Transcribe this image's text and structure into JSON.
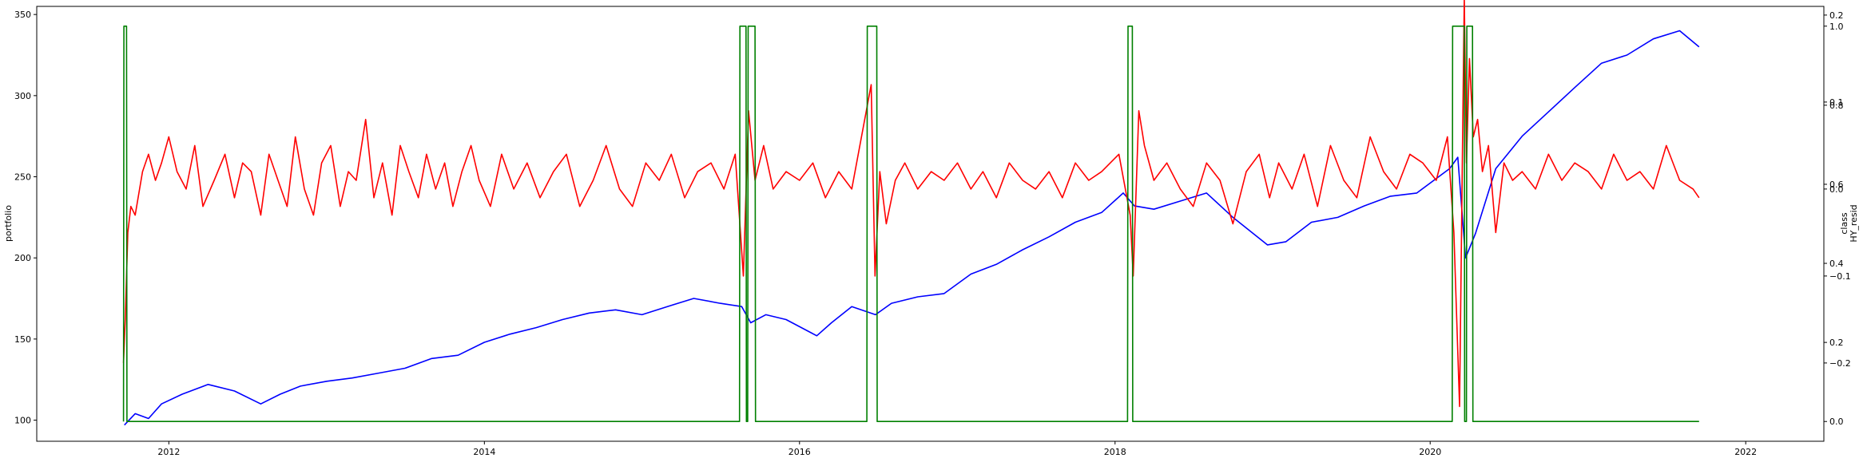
{
  "chart_data": {
    "type": "line",
    "x_ticks": [
      "2012",
      "2014",
      "2016",
      "2018",
      "2020",
      "2022"
    ],
    "xlim": [
      "2011-03-01",
      "2022-07-01"
    ],
    "left_axis": {
      "label": "portfolio",
      "ylim": [
        87,
        355
      ],
      "ticks": [
        "100",
        "150",
        "200",
        "250",
        "300",
        "350"
      ]
    },
    "right_axes": [
      {
        "name": "class",
        "ylim": [
          -0.05,
          1.05
        ],
        "ticks": [
          "0.0",
          "0.2",
          "0.4",
          "0.6",
          "0.8",
          "1.0"
        ]
      },
      {
        "name": "HY_resid",
        "ylim": [
          -0.29,
          0.21
        ],
        "ticks": [
          "−0.2",
          "−0.1",
          "0.0",
          "0.1",
          "0.2"
        ]
      }
    ],
    "right_label_top": "class",
    "right_label_bottom": "HY_resid",
    "series": [
      {
        "color": "#0000ff",
        "axis": "left",
        "x": [
          "2011-09-20",
          "2011-10-15",
          "2011-11-15",
          "2011-12-15",
          "2012-02-01",
          "2012-04-01",
          "2012-06-01",
          "2012-08-01",
          "2012-09-15",
          "2012-11-01",
          "2013-01-01",
          "2013-03-01",
          "2013-05-01",
          "2013-07-01",
          "2013-09-01",
          "2013-11-01",
          "2014-01-01",
          "2014-03-01",
          "2014-05-01",
          "2014-07-01",
          "2014-09-01",
          "2014-11-01",
          "2015-01-01",
          "2015-03-01",
          "2015-05-01",
          "2015-07-01",
          "2015-08-20",
          "2015-09-10",
          "2015-10-15",
          "2015-12-01",
          "2016-02-10",
          "2016-03-15",
          "2016-05-01",
          "2016-06-25",
          "2016-08-01",
          "2016-10-01",
          "2016-12-01",
          "2017-02-01",
          "2017-04-01",
          "2017-06-01",
          "2017-08-01",
          "2017-10-01",
          "2017-12-01",
          "2018-01-20",
          "2018-02-15",
          "2018-04-01",
          "2018-06-01",
          "2018-08-01",
          "2018-10-01",
          "2018-12-20",
          "2019-02-01",
          "2019-04-01",
          "2019-06-01",
          "2019-08-01",
          "2019-10-01",
          "2019-12-01",
          "2020-02-15",
          "2020-03-05",
          "2020-03-23",
          "2020-04-15",
          "2020-06-01",
          "2020-08-01",
          "2020-10-01",
          "2020-12-01",
          "2021-02-01",
          "2021-04-01",
          "2021-06-01",
          "2021-08-01",
          "2021-09-15"
        ],
        "y": [
          97,
          104,
          101,
          110,
          116,
          122,
          118,
          110,
          116,
          121,
          124,
          126,
          129,
          132,
          138,
          140,
          148,
          153,
          157,
          162,
          166,
          168,
          165,
          170,
          175,
          172,
          170,
          160,
          165,
          162,
          152,
          160,
          170,
          165,
          172,
          176,
          178,
          190,
          196,
          205,
          213,
          222,
          228,
          240,
          232,
          230,
          235,
          240,
          225,
          208,
          210,
          222,
          225,
          232,
          238,
          240,
          255,
          262,
          200,
          215,
          255,
          275,
          290,
          305,
          320,
          325,
          335,
          340,
          330
        ]
      },
      {
        "color": "#ff0000",
        "axis": "right_hy",
        "x": [
          "2011-09-18",
          "2011-09-22",
          "2011-09-28",
          "2011-10-05",
          "2011-10-15",
          "2011-11-01",
          "2011-11-15",
          "2011-12-01",
          "2011-12-15",
          "2012-01-01",
          "2012-01-20",
          "2012-02-10",
          "2012-03-01",
          "2012-03-20",
          "2012-04-15",
          "2012-05-10",
          "2012-06-01",
          "2012-06-20",
          "2012-07-10",
          "2012-08-01",
          "2012-08-20",
          "2012-09-10",
          "2012-10-01",
          "2012-10-20",
          "2012-11-10",
          "2012-12-01",
          "2012-12-20",
          "2013-01-10",
          "2013-02-01",
          "2013-02-20",
          "2013-03-10",
          "2013-04-01",
          "2013-04-20",
          "2013-05-10",
          "2013-06-01",
          "2013-06-20",
          "2013-07-10",
          "2013-08-01",
          "2013-08-20",
          "2013-09-10",
          "2013-10-01",
          "2013-10-20",
          "2013-11-10",
          "2013-12-01",
          "2013-12-20",
          "2014-01-15",
          "2014-02-10",
          "2014-03-10",
          "2014-04-10",
          "2014-05-10",
          "2014-06-10",
          "2014-07-10",
          "2014-08-10",
          "2014-09-10",
          "2014-10-10",
          "2014-11-10",
          "2014-12-10",
          "2015-01-10",
          "2015-02-10",
          "2015-03-10",
          "2015-04-10",
          "2015-05-10",
          "2015-06-10",
          "2015-07-10",
          "2015-08-05",
          "2015-08-24",
          "2015-09-05",
          "2015-09-20",
          "2015-10-10",
          "2015-11-01",
          "2015-12-01",
          "2016-01-01",
          "2016-02-01",
          "2016-03-01",
          "2016-04-01",
          "2016-05-01",
          "2016-06-15",
          "2016-06-24",
          "2016-07-05",
          "2016-07-20",
          "2016-08-10",
          "2016-09-01",
          "2016-10-01",
          "2016-11-01",
          "2016-12-01",
          "2017-01-01",
          "2017-02-01",
          "2017-03-01",
          "2017-04-01",
          "2017-05-01",
          "2017-06-01",
          "2017-07-01",
          "2017-08-01",
          "2017-09-01",
          "2017-10-01",
          "2017-11-01",
          "2017-12-01",
          "2018-01-10",
          "2018-02-05",
          "2018-02-12",
          "2018-02-25",
          "2018-03-10",
          "2018-04-01",
          "2018-05-01",
          "2018-06-01",
          "2018-07-01",
          "2018-08-01",
          "2018-09-01",
          "2018-10-01",
          "2018-11-01",
          "2018-12-01",
          "2018-12-25",
          "2019-01-15",
          "2019-02-15",
          "2019-03-15",
          "2019-04-15",
          "2019-05-15",
          "2019-06-15",
          "2019-07-15",
          "2019-08-15",
          "2019-09-15",
          "2019-10-15",
          "2019-11-15",
          "2019-12-15",
          "2020-01-15",
          "2020-02-10",
          "2020-02-25",
          "2020-03-09",
          "2020-03-16",
          "2020-03-20",
          "2020-03-25",
          "2020-04-01",
          "2020-04-10",
          "2020-04-20",
          "2020-05-01",
          "2020-05-15",
          "2020-06-01",
          "2020-06-20",
          "2020-07-10",
          "2020-08-01",
          "2020-09-01",
          "2020-10-01",
          "2020-11-01",
          "2020-12-01",
          "2021-01-01",
          "2021-02-01",
          "2021-03-01",
          "2021-04-01",
          "2021-05-01",
          "2021-06-01",
          "2021-07-01",
          "2021-08-01",
          "2021-09-01",
          "2021-09-15"
        ],
        "y": [
          -0.2,
          -0.15,
          -0.05,
          -0.02,
          -0.03,
          0.02,
          0.04,
          0.01,
          0.03,
          0.06,
          0.02,
          0.0,
          0.05,
          -0.02,
          0.01,
          0.04,
          -0.01,
          0.03,
          0.02,
          -0.03,
          0.04,
          0.01,
          -0.02,
          0.06,
          0.0,
          -0.03,
          0.03,
          0.05,
          -0.02,
          0.02,
          0.01,
          0.08,
          -0.01,
          0.03,
          -0.03,
          0.05,
          0.02,
          -0.01,
          0.04,
          0.0,
          0.03,
          -0.02,
          0.02,
          0.05,
          0.01,
          -0.02,
          0.04,
          0.0,
          0.03,
          -0.01,
          0.02,
          0.04,
          -0.02,
          0.01,
          0.05,
          0.0,
          -0.02,
          0.03,
          0.01,
          0.04,
          -0.01,
          0.02,
          0.03,
          0.0,
          0.04,
          -0.1,
          0.09,
          0.01,
          0.05,
          0.0,
          0.02,
          0.01,
          0.03,
          -0.01,
          0.02,
          0.0,
          0.12,
          -0.1,
          0.02,
          -0.04,
          0.01,
          0.03,
          0.0,
          0.02,
          0.01,
          0.03,
          0.0,
          0.02,
          -0.01,
          0.03,
          0.01,
          0.0,
          0.02,
          -0.01,
          0.03,
          0.01,
          0.02,
          0.04,
          -0.03,
          -0.1,
          0.09,
          0.05,
          0.01,
          0.03,
          0.0,
          -0.02,
          0.03,
          0.01,
          -0.04,
          0.02,
          0.04,
          -0.01,
          0.03,
          0.0,
          0.04,
          -0.02,
          0.05,
          0.01,
          -0.01,
          0.06,
          0.02,
          0.0,
          0.04,
          0.03,
          0.01,
          0.06,
          -0.05,
          -0.25,
          0.05,
          0.22,
          0.03,
          0.15,
          0.06,
          0.08,
          0.02,
          0.05,
          -0.05,
          0.03,
          0.01,
          0.02,
          0.0,
          0.04,
          0.01,
          0.03,
          0.02,
          0.0,
          0.04,
          0.01,
          0.02,
          0.0,
          0.05,
          0.01,
          0.0,
          -0.01
        ]
      },
      {
        "color": "#008000",
        "axis": "right_class",
        "x": [
          "2011-09-18",
          "2011-09-19",
          "2011-09-25",
          "2011-09-26",
          "2015-08-15",
          "2015-08-16",
          "2015-08-30",
          "2015-08-31",
          "2015-09-03",
          "2015-09-04",
          "2015-09-20",
          "2015-09-21",
          "2016-06-05",
          "2016-06-06",
          "2016-06-28",
          "2016-06-29",
          "2018-01-30",
          "2018-01-31",
          "2018-02-10",
          "2018-02-11",
          "2020-02-21",
          "2020-02-22",
          "2020-03-20",
          "2020-03-21",
          "2020-03-25",
          "2020-03-26",
          "2020-04-08",
          "2020-04-09",
          "2021-09-15"
        ],
        "y": [
          0,
          1,
          1,
          0,
          0,
          1,
          1,
          0,
          0,
          1,
          1,
          0,
          0,
          1,
          1,
          0,
          0,
          1,
          1,
          0,
          0,
          1,
          1,
          0,
          0,
          1,
          1,
          0,
          0
        ]
      }
    ]
  }
}
